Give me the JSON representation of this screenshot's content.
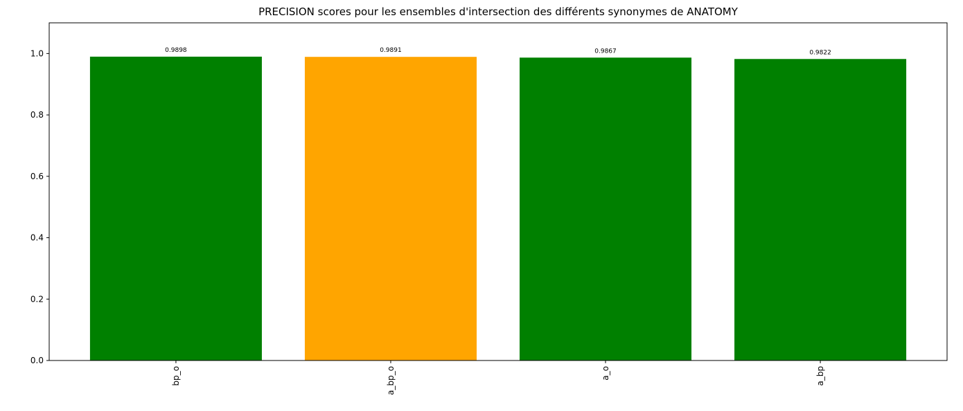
{
  "chart_data": {
    "type": "bar",
    "title": "PRECISION scores pour les ensembles d'intersection des différents synonymes de ANATOMY",
    "xlabel": "",
    "ylabel": "",
    "categories": [
      "bp_o",
      "a_bp_o",
      "a_o",
      "a_bp"
    ],
    "values": [
      0.9898,
      0.9891,
      0.9867,
      0.9822
    ],
    "value_labels": [
      "0.9898",
      "0.9891",
      "0.9867",
      "0.9822"
    ],
    "bar_colors": [
      "#008000",
      "#ffa500",
      "#008000",
      "#008000"
    ],
    "ylim": [
      0,
      1.1
    ],
    "yticks": [
      0.0,
      0.2,
      0.4,
      0.6,
      0.8,
      1.0
    ],
    "ytick_labels": [
      "0.0",
      "0.2",
      "0.4",
      "0.6",
      "0.8",
      "1.0"
    ],
    "grid": false,
    "legend": "none"
  }
}
